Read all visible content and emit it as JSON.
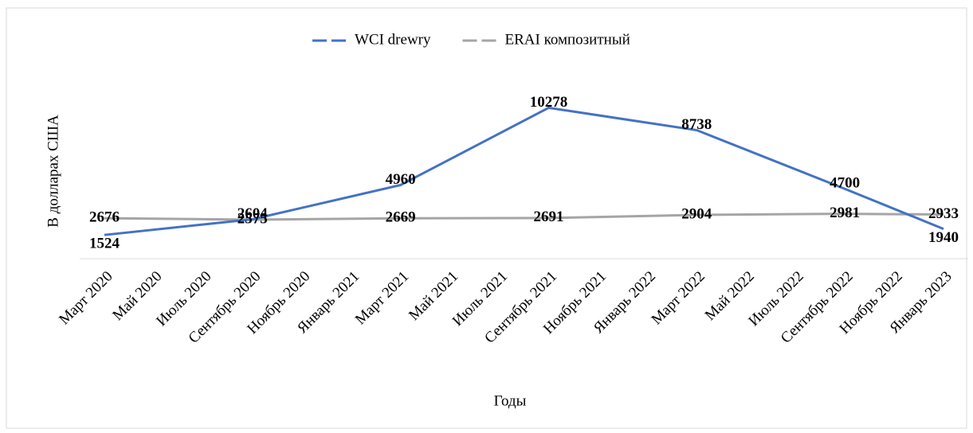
{
  "chart_data": {
    "type": "line",
    "legend": "top",
    "x_title": "Годы",
    "y_title": "В долларах США",
    "categories": [
      "Март 2020",
      "Май 2020",
      "Июль 2020",
      "Сентябрь 2020",
      "Ноябрь 2020",
      "Январь 2021",
      "Март 2021",
      "Май 2021",
      "Июль 2021",
      "Сентябрь 2021",
      "Ноябрь 2021",
      "Январь 2022",
      "Март 2022",
      "Май 2022",
      "Июль 2022",
      "Сентябрь 2022",
      "Ноябрь 2022",
      "Январь 2023"
    ],
    "x": [
      "Март 2020",
      "Сентябрь 2020",
      "Март 2021",
      "Сентябрь 2021",
      "Март 2022",
      "Сентябрь 2022",
      "Январь 2023"
    ],
    "ylim": [
      0,
      12000
    ],
    "series": [
      {
        "name": "WCI drewry",
        "color": "#4472c4",
        "values": [
          1524,
          2604,
          4960,
          10278,
          8738,
          4700,
          1940
        ]
      },
      {
        "name": "ERAI композитный",
        "color": "#a5a5a5",
        "values": [
          2676,
          2575,
          2669,
          2691,
          2904,
          2981,
          2933
        ]
      }
    ]
  }
}
